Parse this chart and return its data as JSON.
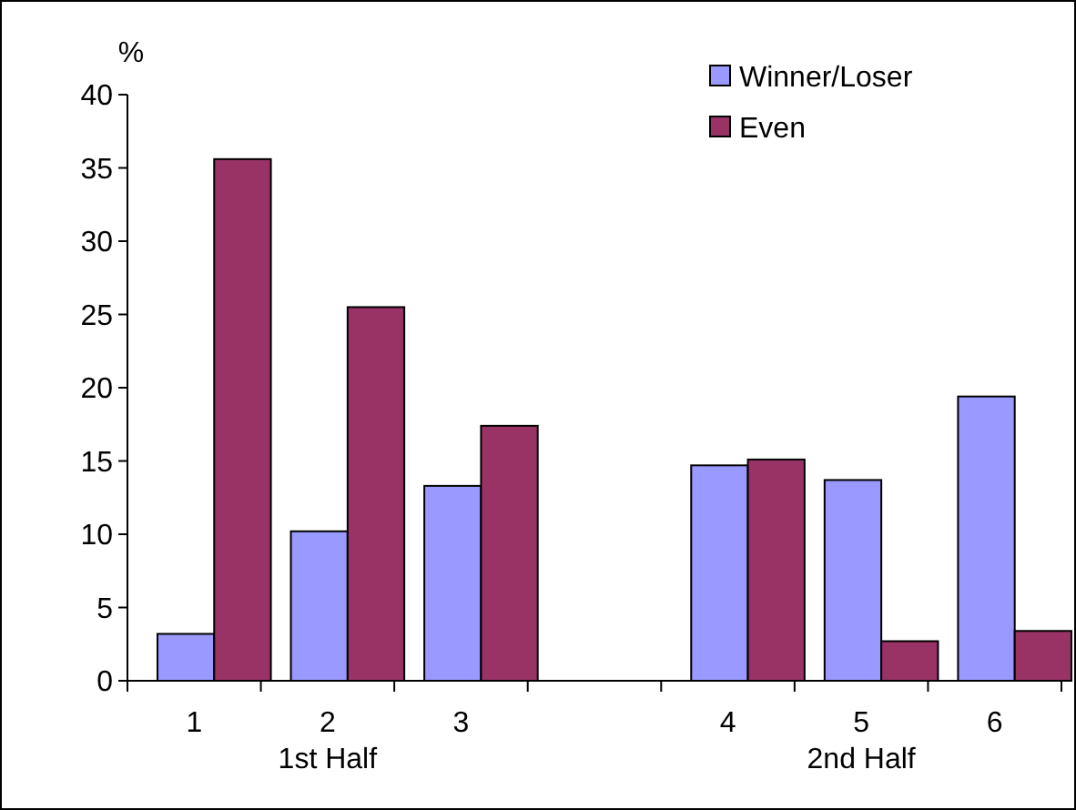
{
  "chart_data": {
    "type": "bar",
    "ylabel": "%",
    "categories": [
      "1",
      "2",
      "3",
      null,
      "4",
      "5",
      "6"
    ],
    "series": [
      {
        "name": "Winner/Loser",
        "color": "#9999ff",
        "values": [
          3.2,
          10.2,
          13.3,
          null,
          14.7,
          13.7,
          19.4
        ]
      },
      {
        "name": "Even",
        "color": "#993366",
        "values": [
          35.6,
          25.5,
          17.4,
          null,
          15.1,
          2.7,
          3.4
        ]
      }
    ],
    "ylim": [
      0,
      40
    ],
    "yticks": [
      0,
      5,
      10,
      15,
      20,
      25,
      30,
      35,
      40
    ],
    "annotations": [
      "1st Half",
      "2nd Half"
    ],
    "legend": "top right",
    "grid": false
  }
}
